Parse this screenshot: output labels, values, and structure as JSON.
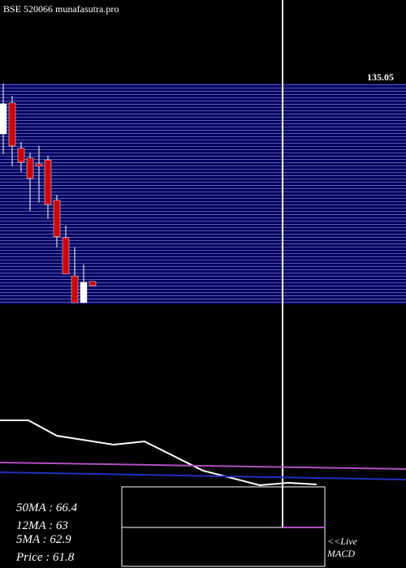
{
  "chart_data": [
    {
      "type": "candlestick",
      "title": "BSE 520066  munafasutra.pro",
      "top_label": "135.05",
      "ylim": [
        55,
        140
      ],
      "up_color": "#ffffff",
      "down_color": "#cc0000",
      "open": [
        119.9,
        131.7,
        114.4,
        110.7,
        108.5,
        110.0,
        94.6,
        80.4,
        65.8,
        55.6,
        63.7
      ],
      "high": [
        139.1,
        134.4,
        116.8,
        112.8,
        115.3,
        111.6,
        96.7,
        85.0,
        76.7,
        70.2,
        63.7
      ],
      "low": [
        112.2,
        107.6,
        105.4,
        90.6,
        93.7,
        87.5,
        76.7,
        66.5,
        55.6,
        55.6,
        62.1
      ],
      "close": [
        131.4,
        115.3,
        109.1,
        102.9,
        107.6,
        93.0,
        80.7,
        66.5,
        55.6,
        63.4,
        62.1
      ]
    },
    {
      "type": "line",
      "xlim": [
        0,
        500
      ],
      "ylim": [
        0,
        100
      ],
      "series": [
        {
          "color": "#ffffff",
          "x": [
            0,
            35,
            70,
            140,
            178,
            250,
            320,
            355,
            390
          ],
          "values": [
            82,
            82,
            63,
            52,
            56,
            20,
            2,
            5,
            3
          ]
        },
        {
          "color": "#b050c0",
          "x": [
            0,
            500
          ],
          "values": [
            30,
            22
          ]
        },
        {
          "color": "#2030c0",
          "x": [
            0,
            500
          ],
          "values": [
            18,
            9
          ]
        }
      ]
    }
  ],
  "stats": [
    "50MA : 66.4",
    "12MA : 63",
    "5MA : 62.9",
    "Price   : 61.8"
  ],
  "live": "<<Live",
  "macd": "MACD"
}
